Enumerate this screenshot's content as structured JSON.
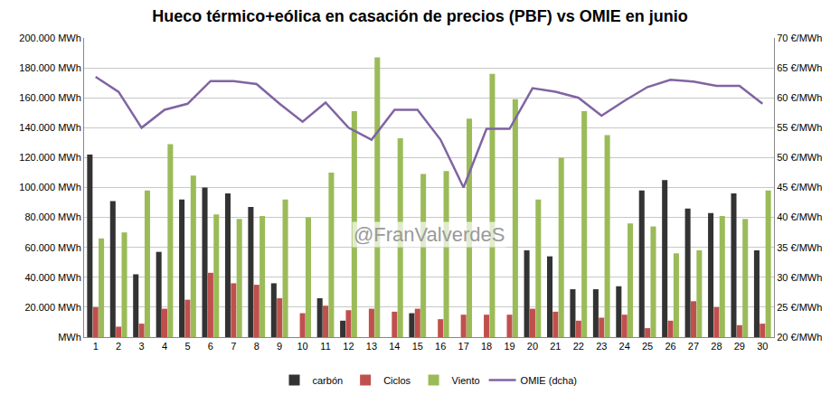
{
  "chart_data": {
    "type": "bar",
    "title": "Hueco térmico+eólica en casación de precios (PBF) vs OMIE en junio",
    "annotations": [
      "@FranValverdeS"
    ],
    "categories": [
      "1",
      "2",
      "3",
      "4",
      "5",
      "6",
      "7",
      "8",
      "9",
      "10",
      "11",
      "12",
      "13",
      "14",
      "15",
      "16",
      "17",
      "18",
      "19",
      "20",
      "21",
      "22",
      "23",
      "24",
      "25",
      "26",
      "27",
      "28",
      "29",
      "30"
    ],
    "series": [
      {
        "name": "carbón",
        "color": "#333333",
        "type": "bar",
        "values": [
          122000,
          91000,
          42000,
          57000,
          92000,
          100000,
          96000,
          87000,
          36000,
          0,
          26000,
          11000,
          0,
          0,
          16000,
          0,
          0,
          0,
          0,
          58000,
          54000,
          32000,
          32000,
          34000,
          98000,
          105000,
          86000,
          83000,
          96000,
          58000
        ]
      },
      {
        "name": "Ciclos",
        "color": "#c0504d",
        "type": "bar",
        "values": [
          20000,
          7000,
          9000,
          19000,
          25000,
          43000,
          36000,
          35000,
          26000,
          16000,
          21000,
          18000,
          19000,
          17000,
          19000,
          12000,
          15000,
          15000,
          15000,
          19000,
          17000,
          11000,
          13000,
          15000,
          6000,
          11000,
          24000,
          20000,
          8000,
          9000
        ]
      },
      {
        "name": "Viento",
        "color": "#9bbb59",
        "type": "bar",
        "values": [
          66000,
          70000,
          98000,
          129000,
          108000,
          82000,
          79000,
          81000,
          92000,
          80000,
          110000,
          151000,
          187000,
          133000,
          109000,
          111000,
          146000,
          176000,
          159000,
          92000,
          120000,
          151000,
          135000,
          76000,
          74000,
          56000,
          58000,
          81000,
          79000,
          98000
        ]
      },
      {
        "name": "OMIE (dcha)",
        "color": "#8064a2",
        "type": "line",
        "axis": "y2",
        "values": [
          63.5,
          61,
          55,
          58,
          59,
          62.8,
          62.8,
          62.3,
          59,
          56,
          59.2,
          55,
          53,
          58,
          58,
          53,
          45,
          54.8,
          54.8,
          61.6,
          61,
          60,
          57,
          59.5,
          61.8,
          63,
          62.7,
          62,
          62,
          59
        ]
      }
    ],
    "ylim": [
      0,
      200000
    ],
    "yticks": [
      {
        "value": 0,
        "label": "MWh"
      },
      {
        "value": 20000,
        "label": "20.000 MWh"
      },
      {
        "value": 40000,
        "label": "40.000 MWh"
      },
      {
        "value": 60000,
        "label": "60.000 MWh"
      },
      {
        "value": 80000,
        "label": "80.000 MWh"
      },
      {
        "value": 100000,
        "label": "100.000 MWh"
      },
      {
        "value": 120000,
        "label": "120.000 MWh"
      },
      {
        "value": 140000,
        "label": "140.000 MWh"
      },
      {
        "value": 160000,
        "label": "160.000 MWh"
      },
      {
        "value": 180000,
        "label": "180.000 MWh"
      },
      {
        "value": 200000,
        "label": "200.000 MWh"
      }
    ],
    "y2lim": [
      20,
      70
    ],
    "y2ticks": [
      {
        "value": 20,
        "label": "20 €/MWh"
      },
      {
        "value": 25,
        "label": "25 €/MWh"
      },
      {
        "value": 30,
        "label": "30 €/MWh"
      },
      {
        "value": 35,
        "label": "35 €/MWh"
      },
      {
        "value": 40,
        "label": "40 €/MWh"
      },
      {
        "value": 45,
        "label": "45 €/MWh"
      },
      {
        "value": 50,
        "label": "50 €/MWh"
      },
      {
        "value": 55,
        "label": "55 €/MWh"
      },
      {
        "value": 60,
        "label": "60 €/MWh"
      },
      {
        "value": 65,
        "label": "65 €/MWh"
      },
      {
        "value": 70,
        "label": "70 €/MWh"
      }
    ],
    "grid": true,
    "legend": "bottom"
  }
}
